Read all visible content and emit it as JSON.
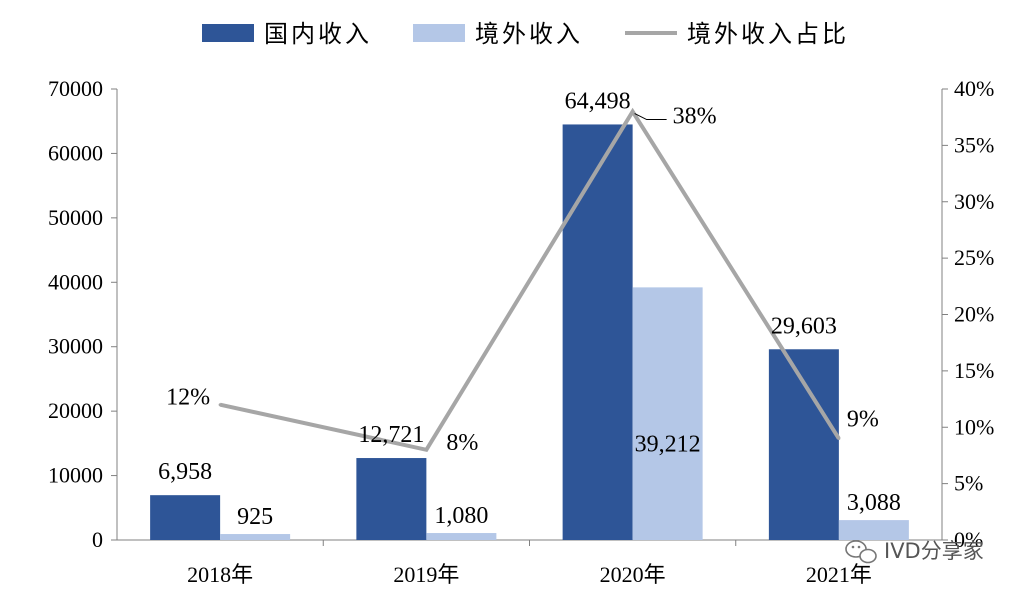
{
  "chart_data": {
    "type": "bar",
    "categories": [
      "2018年",
      "2019年",
      "2020年",
      "2021年"
    ],
    "series": [
      {
        "name": "国内收入",
        "type": "bar",
        "axis": "left",
        "color": "#2e5597",
        "values": [
          6958,
          12721,
          64498,
          29603
        ],
        "labels": [
          "6,958",
          "12,721",
          "64,498",
          "29,603"
        ]
      },
      {
        "name": "境外收入",
        "type": "bar",
        "axis": "left",
        "color": "#b4c7e7",
        "values": [
          925,
          1080,
          39212,
          3088
        ],
        "labels": [
          "925",
          "1,080",
          "39,212",
          "3,088"
        ]
      },
      {
        "name": "境外收入占比",
        "type": "line",
        "axis": "right",
        "color": "#a6a6a6",
        "values": [
          0.12,
          0.08,
          0.38,
          0.09
        ],
        "labels": [
          "12%",
          "8%",
          "38%",
          "9%"
        ]
      }
    ],
    "y_left": {
      "min": 0,
      "max": 70000,
      "ticks": [
        "0",
        "10000",
        "20000",
        "30000",
        "40000",
        "50000",
        "60000",
        "70000"
      ]
    },
    "y_right": {
      "min": 0,
      "max": 0.4,
      "ticks": [
        "0%",
        "5%",
        "10%",
        "15%",
        "20%",
        "25%",
        "30%",
        "35%",
        "40%"
      ]
    },
    "legend_position": "top",
    "grid": false
  },
  "watermark": {
    "text": "IVD分享家",
    "icon": "wechat-icon"
  }
}
